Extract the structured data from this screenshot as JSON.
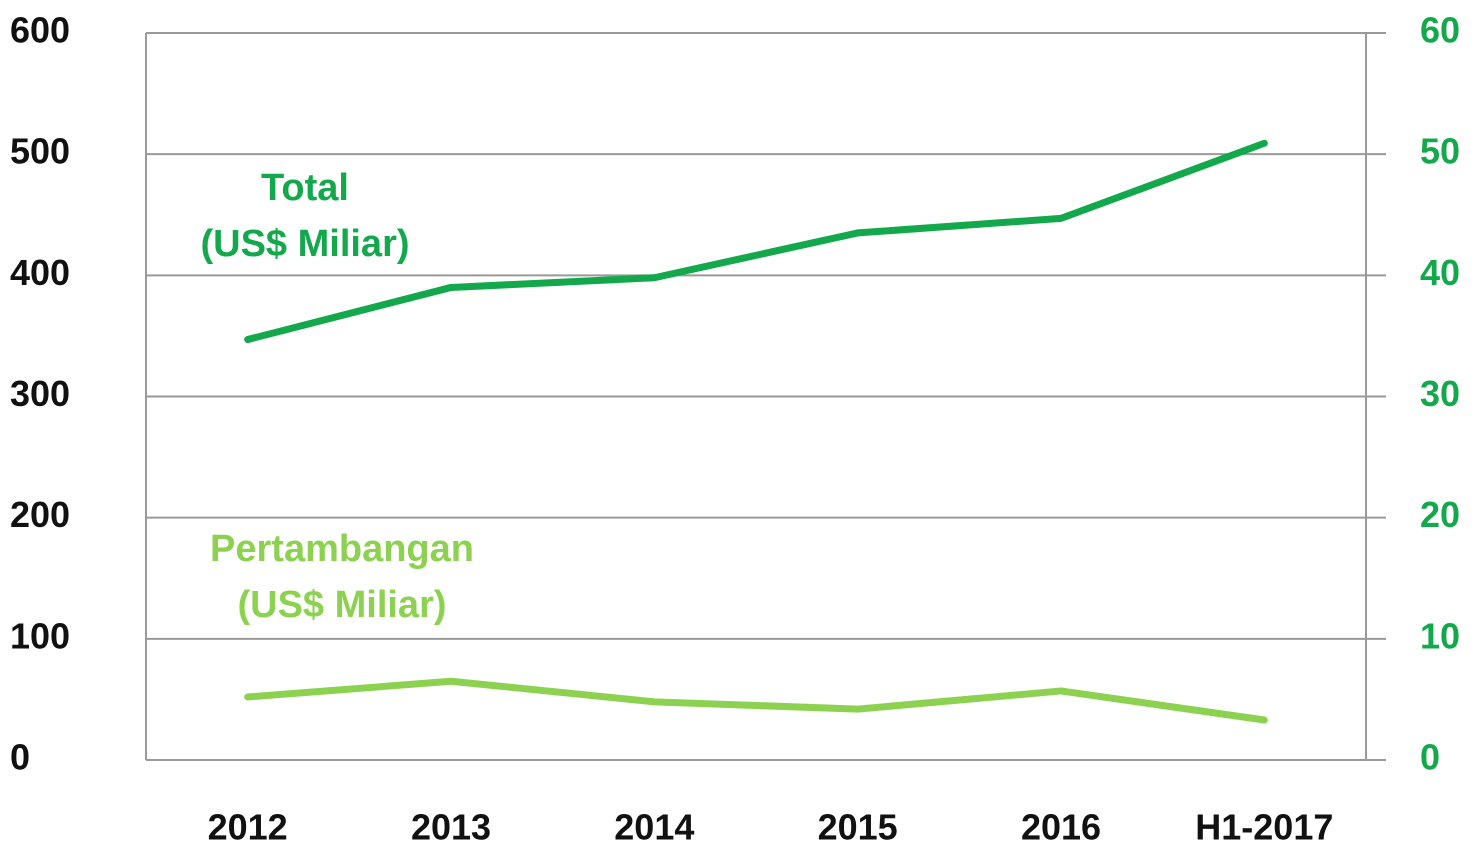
{
  "chart_data": {
    "type": "line",
    "categories": [
      "2012",
      "2013",
      "2014",
      "2015",
      "2016",
      "H1-2017"
    ],
    "series": [
      {
        "name": "Total",
        "color": "#13a84c",
        "values": [
          347,
          390,
          398,
          435,
          447,
          509
        ]
      },
      {
        "name": "Pertambangan",
        "color": "#8dd150",
        "values": [
          52,
          65,
          48,
          42,
          57,
          33
        ]
      }
    ],
    "ylim": [
      0,
      600
    ],
    "yticks": [
      0,
      100,
      200,
      300,
      400,
      500,
      600
    ],
    "y2lim": [
      0,
      60
    ],
    "y2ticks": [
      0,
      10,
      20,
      30,
      40,
      50,
      60
    ],
    "y2color": "#13a84c",
    "grid": true,
    "annotations": [
      {
        "text": "Total",
        "color": "#13a84c"
      },
      {
        "text": "(US$ Miliar)",
        "color": "#13a84c"
      },
      {
        "text": "Pertambangan",
        "color": "#8dd150"
      },
      {
        "text": "(US$ Miliar)",
        "color": "#8dd150"
      }
    ]
  }
}
